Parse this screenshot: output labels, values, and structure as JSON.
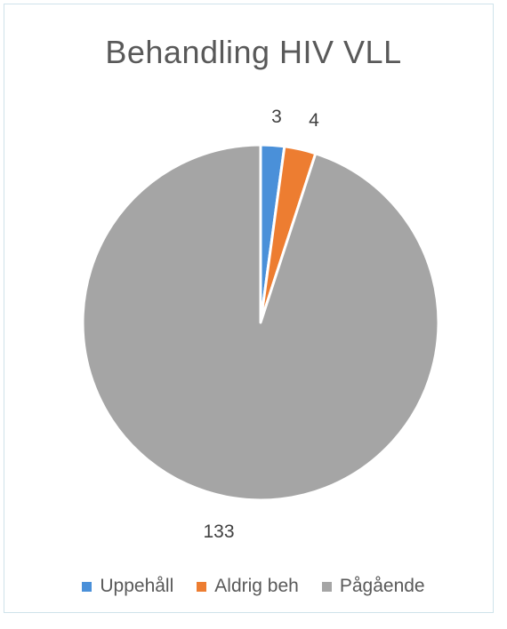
{
  "chart_data": {
    "type": "pie",
    "title": "Behandling HIV VLL",
    "categories": [
      "Uppehåll",
      "Aldrig beh",
      "Pågående"
    ],
    "values": [
      3,
      4,
      133
    ],
    "colors": [
      "#4a90d9",
      "#ed7d31",
      "#a5a5a5"
    ],
    "data_labels": [
      "3",
      "4",
      "133"
    ],
    "legend_position": "bottom"
  }
}
